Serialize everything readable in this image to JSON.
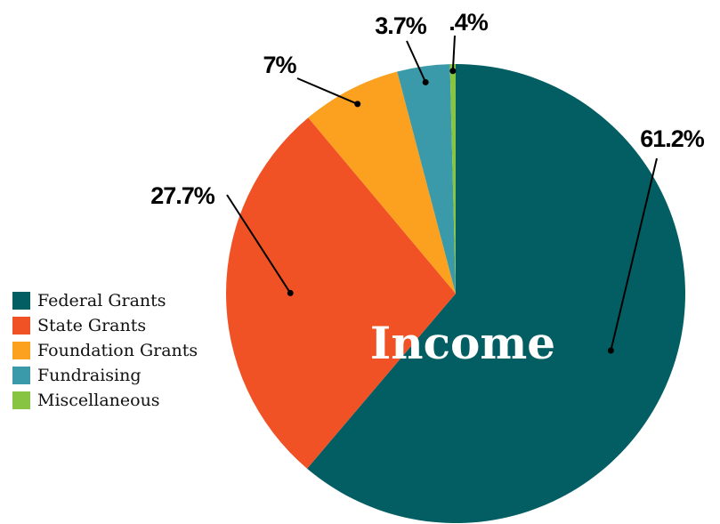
{
  "chart_data": {
    "type": "pie",
    "title": "Income",
    "categories": [
      "Federal Grants",
      "State Grants",
      "Foundation Grants",
      "Fundraising",
      "Miscellaneous"
    ],
    "values": [
      61.2,
      27.7,
      7,
      3.7,
      0.4
    ],
    "labels": [
      "61.2%",
      "27.7%",
      "7%",
      "3.7%",
      ".4%"
    ],
    "colors": [
      "#035e63",
      "#f05226",
      "#fba01f",
      "#3b9aa9",
      "#86c441"
    ],
    "legend_position": "left",
    "start_angle": "12 o'clock",
    "direction": "clockwise"
  }
}
